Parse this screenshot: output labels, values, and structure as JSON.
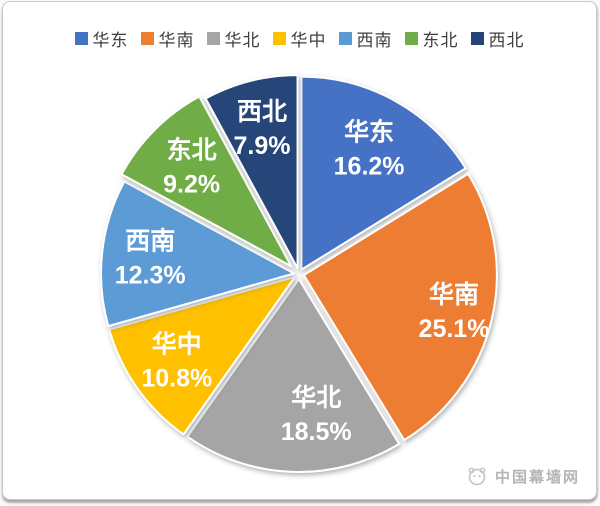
{
  "chart_data": {
    "type": "pie",
    "title": "",
    "legend_position": "top",
    "start_angle_deg": 0,
    "direction": "clockwise",
    "center": [
      296,
      272
    ],
    "radius": 193,
    "label_color": "#ffffff",
    "legend_text_color": "#3f3f3f",
    "slices": [
      {
        "label": "华东",
        "value": 16.2,
        "display": "16.2%",
        "color": "#4472C4",
        "explode": 5,
        "label_r": 0.72
      },
      {
        "label": "华南",
        "value": 25.1,
        "display": "25.1%",
        "color": "#ED7D31",
        "explode": 5,
        "label_r": 0.8
      },
      {
        "label": "华北",
        "value": 18.5,
        "display": "18.5%",
        "color": "#A5A5A5",
        "explode": 5,
        "label_r": 0.7,
        "label_dx": 22
      },
      {
        "label": "华中",
        "value": 10.8,
        "display": "10.8%",
        "color": "#FFC000",
        "explode": 5,
        "label_r": 0.75
      },
      {
        "label": "西南",
        "value": 12.3,
        "display": "12.3%",
        "color": "#5B9BD5",
        "explode": 5,
        "label_r": 0.75
      },
      {
        "label": "东北",
        "value": 9.2,
        "display": "9.2%",
        "color": "#70AD47",
        "explode": 11,
        "label_r": 0.73
      },
      {
        "label": "西北",
        "value": 7.9,
        "display": "7.9%",
        "color": "#264478",
        "explode": 6,
        "label_r": 0.75
      }
    ]
  },
  "watermark": {
    "text": "中国幕墙网",
    "color": "#b5b5b5"
  }
}
